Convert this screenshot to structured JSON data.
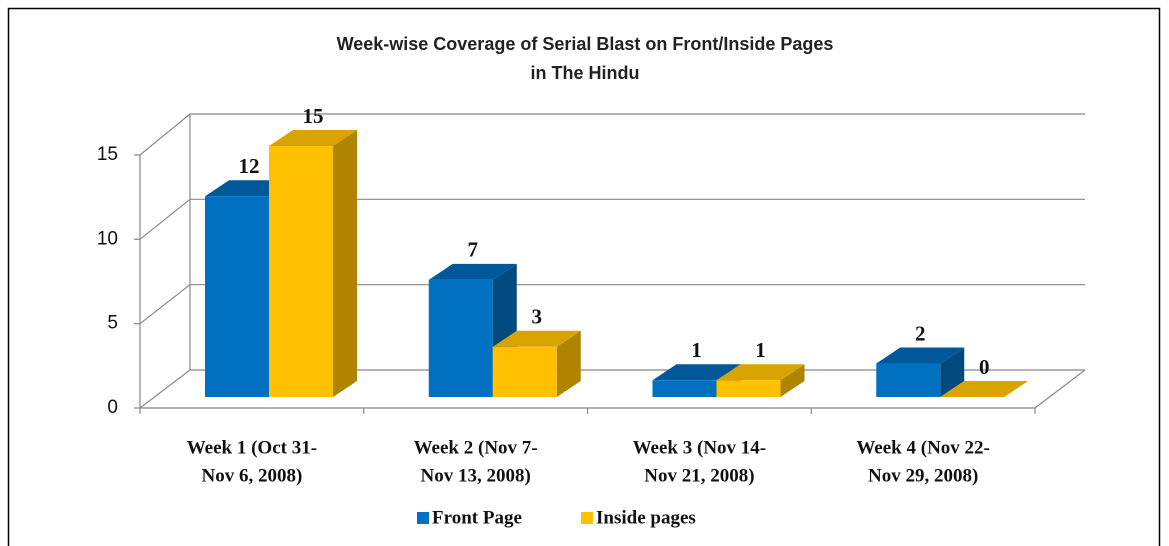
{
  "chart_data": {
    "type": "bar3d",
    "title": [
      "Week-wise Coverage of Serial Blast on Front/Inside Pages",
      "in The Hindu"
    ],
    "categories": [
      [
        "Week 1 (Oct 31-",
        "Nov 6, 2008)"
      ],
      [
        "Week 2 (Nov 7-",
        "Nov 13, 2008)"
      ],
      [
        "Week 3 (Nov 14-",
        "Nov 21, 2008)"
      ],
      [
        "Week 4 (Nov 22-",
        "Nov 29, 2008)"
      ]
    ],
    "series": [
      {
        "name": "Front Page",
        "color": "#0070c0",
        "top": "#00589a",
        "side": "#004a80",
        "values": [
          12,
          7,
          1,
          2
        ]
      },
      {
        "name": "Inside pages",
        "color": "#ffc000",
        "top": "#d9a300",
        "side": "#b08300",
        "values": [
          15,
          3,
          1,
          0
        ]
      }
    ],
    "ylim": [
      0,
      15
    ],
    "yticks": [
      0,
      5,
      10,
      15
    ],
    "grid": true,
    "legend": "bottom"
  }
}
